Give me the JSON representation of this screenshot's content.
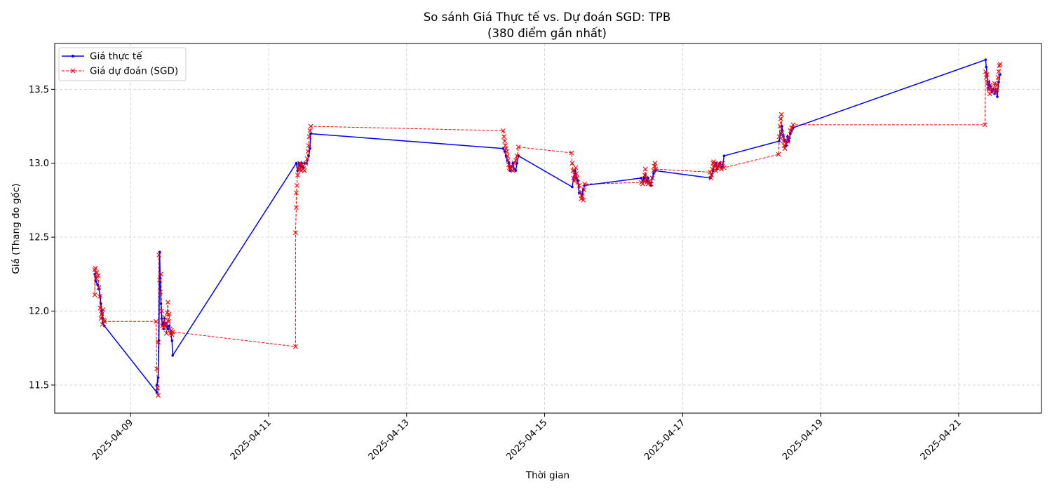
{
  "chart_data": {
    "type": "line",
    "title": "So sánh Giá Thực tế vs. Dự đoán SGD: TPB",
    "subtitle": "(380 điểm gần nhất)",
    "xlabel": "Thời gian",
    "ylabel": "Giá (Thang đo gốc)",
    "xlim": [
      7.9,
      22.2
    ],
    "ylim": [
      11.31,
      13.81
    ],
    "x_ticks": [
      {
        "value": 9,
        "label": "2025-04-09"
      },
      {
        "value": 11,
        "label": "2025-04-11"
      },
      {
        "value": 13,
        "label": "2025-04-13"
      },
      {
        "value": 15,
        "label": "2025-04-15"
      },
      {
        "value": 17,
        "label": "2025-04-17"
      },
      {
        "value": 19,
        "label": "2025-04-19"
      },
      {
        "value": 21,
        "label": "2025-04-21"
      }
    ],
    "y_ticks": [
      11.5,
      12.0,
      12.5,
      13.0,
      13.5
    ],
    "grid": true,
    "legend_position": "top-left",
    "colors": {
      "actual": "#0000ff",
      "predicted": "#ff0000",
      "grid": "#cccccc"
    },
    "series": [
      {
        "name": "Giá thực tế",
        "style": "solid line with dot markers",
        "color": "#0000ff",
        "points": [
          [
            8.48,
            12.25
          ],
          [
            8.5,
            12.2
          ],
          [
            8.52,
            12.18
          ],
          [
            8.54,
            12.15
          ],
          [
            8.56,
            12.1
          ],
          [
            8.57,
            12.05
          ],
          [
            8.58,
            12.0
          ],
          [
            8.59,
            11.95
          ],
          [
            8.6,
            11.92
          ],
          [
            8.62,
            11.9
          ],
          [
            9.38,
            11.45
          ],
          [
            9.38,
            11.5
          ],
          [
            9.4,
            11.55
          ],
          [
            9.41,
            11.8
          ],
          [
            9.42,
            12.4
          ],
          [
            9.43,
            12.2
          ],
          [
            9.44,
            12.05
          ],
          [
            9.45,
            11.95
          ],
          [
            9.46,
            11.9
          ],
          [
            9.47,
            11.92
          ],
          [
            9.48,
            11.88
          ],
          [
            9.49,
            11.95
          ],
          [
            9.5,
            11.9
          ],
          [
            9.52,
            11.92
          ],
          [
            9.54,
            11.88
          ],
          [
            9.56,
            11.9
          ],
          [
            9.58,
            11.85
          ],
          [
            9.6,
            11.8
          ],
          [
            9.61,
            11.7
          ],
          [
            11.4,
            13.0
          ],
          [
            11.42,
            12.95
          ],
          [
            11.44,
            13.0
          ],
          [
            11.46,
            12.98
          ],
          [
            11.48,
            13.0
          ],
          [
            11.5,
            12.97
          ],
          [
            11.52,
            13.0
          ],
          [
            11.55,
            13.0
          ],
          [
            11.58,
            13.05
          ],
          [
            11.6,
            13.1
          ],
          [
            11.61,
            13.2
          ],
          [
            14.4,
            13.1
          ],
          [
            14.42,
            13.08
          ],
          [
            14.44,
            13.05
          ],
          [
            14.46,
            13.02
          ],
          [
            14.48,
            13.0
          ],
          [
            14.5,
            12.95
          ],
          [
            14.52,
            12.98
          ],
          [
            14.54,
            13.0
          ],
          [
            14.56,
            12.96
          ],
          [
            14.58,
            12.95
          ],
          [
            14.6,
            13.0
          ],
          [
            14.62,
            13.05
          ],
          [
            15.4,
            12.84
          ],
          [
            15.42,
            12.9
          ],
          [
            15.44,
            12.95
          ],
          [
            15.46,
            12.9
          ],
          [
            15.48,
            12.88
          ],
          [
            15.5,
            12.8
          ],
          [
            15.52,
            12.8
          ],
          [
            15.54,
            12.78
          ],
          [
            15.56,
            12.82
          ],
          [
            15.58,
            12.85
          ],
          [
            16.4,
            12.9
          ],
          [
            16.42,
            12.88
          ],
          [
            16.44,
            12.9
          ],
          [
            16.46,
            12.92
          ],
          [
            16.48,
            12.88
          ],
          [
            16.5,
            12.9
          ],
          [
            16.52,
            12.87
          ],
          [
            16.54,
            12.85
          ],
          [
            16.56,
            12.9
          ],
          [
            16.58,
            12.93
          ],
          [
            16.6,
            12.95
          ],
          [
            17.4,
            12.9
          ],
          [
            17.42,
            12.92
          ],
          [
            17.44,
            12.95
          ],
          [
            17.46,
            12.98
          ],
          [
            17.48,
            13.0
          ],
          [
            17.5,
            12.96
          ],
          [
            17.52,
            12.98
          ],
          [
            17.54,
            13.0
          ],
          [
            17.56,
            12.97
          ],
          [
            17.58,
            12.98
          ],
          [
            17.6,
            13.05
          ],
          [
            18.4,
            13.15
          ],
          [
            18.42,
            13.2
          ],
          [
            18.44,
            13.25
          ],
          [
            18.46,
            13.18
          ],
          [
            18.48,
            13.15
          ],
          [
            18.5,
            13.12
          ],
          [
            18.52,
            13.18
          ],
          [
            18.54,
            13.15
          ],
          [
            18.56,
            13.2
          ],
          [
            18.58,
            13.22
          ],
          [
            18.6,
            13.24
          ],
          [
            21.39,
            13.7
          ],
          [
            21.4,
            13.65
          ],
          [
            21.41,
            13.6
          ],
          [
            21.42,
            13.55
          ],
          [
            21.43,
            13.5
          ],
          [
            21.44,
            13.55
          ],
          [
            21.46,
            13.52
          ],
          [
            21.48,
            13.48
          ],
          [
            21.5,
            13.5
          ],
          [
            21.52,
            13.47
          ],
          [
            21.54,
            13.5
          ],
          [
            21.56,
            13.45
          ],
          [
            21.58,
            13.55
          ],
          [
            21.6,
            13.6
          ]
        ]
      },
      {
        "name": "Giá dự đoán (SGD)",
        "style": "dashed line with x markers",
        "color": "#ff0000",
        "points": [
          [
            8.48,
            12.28
          ],
          [
            8.48,
            12.11
          ],
          [
            8.49,
            12.29
          ],
          [
            8.5,
            12.22
          ],
          [
            8.51,
            12.26
          ],
          [
            8.53,
            12.24
          ],
          [
            8.54,
            12.16
          ],
          [
            8.55,
            12.1
          ],
          [
            8.56,
            12.02
          ],
          [
            8.57,
            11.95
          ],
          [
            8.58,
            11.98
          ],
          [
            8.59,
            11.91
          ],
          [
            8.6,
            12.01
          ],
          [
            8.61,
            11.94
          ],
          [
            8.62,
            11.93
          ],
          [
            9.37,
            11.93
          ],
          [
            9.38,
            11.61
          ],
          [
            9.39,
            11.48
          ],
          [
            9.4,
            11.43
          ],
          [
            9.4,
            11.79
          ],
          [
            9.41,
            12.38
          ],
          [
            9.42,
            12.21
          ],
          [
            9.43,
            12.13
          ],
          [
            9.44,
            12.25
          ],
          [
            9.45,
            12.0
          ],
          [
            9.46,
            11.9
          ],
          [
            9.47,
            11.93
          ],
          [
            9.48,
            11.89
          ],
          [
            9.49,
            11.96
          ],
          [
            9.5,
            11.9
          ],
          [
            9.51,
            11.92
          ],
          [
            9.52,
            11.85
          ],
          [
            9.53,
            11.99
          ],
          [
            9.54,
            12.06
          ],
          [
            9.55,
            11.93
          ],
          [
            9.56,
            11.98
          ],
          [
            9.57,
            11.88
          ],
          [
            9.58,
            11.85
          ],
          [
            9.59,
            11.87
          ],
          [
            9.6,
            11.84
          ],
          [
            9.61,
            11.86
          ],
          [
            11.39,
            11.76
          ],
          [
            11.39,
            12.53
          ],
          [
            11.4,
            12.7
          ],
          [
            11.4,
            12.8
          ],
          [
            11.41,
            12.85
          ],
          [
            11.42,
            12.92
          ],
          [
            11.43,
            12.96
          ],
          [
            11.44,
            12.98
          ],
          [
            11.45,
            13.0
          ],
          [
            11.46,
            12.96
          ],
          [
            11.47,
            12.95
          ],
          [
            11.48,
            12.99
          ],
          [
            11.5,
            12.96
          ],
          [
            11.52,
            12.95
          ],
          [
            11.54,
            13.0
          ],
          [
            11.56,
            13.03
          ],
          [
            11.57,
            13.08
          ],
          [
            11.58,
            13.12
          ],
          [
            11.59,
            13.18
          ],
          [
            11.6,
            13.22
          ],
          [
            11.61,
            13.25
          ],
          [
            14.4,
            13.22
          ],
          [
            14.41,
            13.18
          ],
          [
            14.42,
            13.15
          ],
          [
            14.43,
            13.12
          ],
          [
            14.44,
            13.1
          ],
          [
            14.45,
            13.08
          ],
          [
            14.46,
            13.05
          ],
          [
            14.47,
            13.02
          ],
          [
            14.48,
            12.99
          ],
          [
            14.49,
            12.97
          ],
          [
            14.5,
            12.96
          ],
          [
            14.52,
            12.98
          ],
          [
            14.54,
            12.95
          ],
          [
            14.56,
            13.0
          ],
          [
            14.58,
            13.02
          ],
          [
            14.6,
            13.05
          ],
          [
            14.62,
            13.11
          ],
          [
            15.39,
            13.07
          ],
          [
            15.4,
            13.0
          ],
          [
            15.41,
            12.95
          ],
          [
            15.42,
            12.9
          ],
          [
            15.43,
            12.88
          ],
          [
            15.44,
            12.92
          ],
          [
            15.45,
            12.97
          ],
          [
            15.46,
            12.93
          ],
          [
            15.47,
            12.9
          ],
          [
            15.48,
            12.87
          ],
          [
            15.5,
            12.85
          ],
          [
            15.52,
            12.8
          ],
          [
            15.53,
            12.76
          ],
          [
            15.54,
            12.78
          ],
          [
            15.56,
            12.75
          ],
          [
            15.57,
            12.82
          ],
          [
            15.58,
            12.86
          ],
          [
            16.4,
            12.87
          ],
          [
            16.42,
            12.86
          ],
          [
            16.44,
            12.88
          ],
          [
            16.45,
            12.92
          ],
          [
            16.46,
            12.96
          ],
          [
            16.47,
            12.9
          ],
          [
            16.48,
            12.87
          ],
          [
            16.5,
            12.86
          ],
          [
            16.52,
            12.88
          ],
          [
            16.54,
            12.86
          ],
          [
            16.56,
            12.9
          ],
          [
            16.58,
            12.95
          ],
          [
            16.59,
            12.98
          ],
          [
            16.6,
            13.0
          ],
          [
            16.61,
            12.96
          ],
          [
            17.4,
            12.94
          ],
          [
            17.41,
            12.9
          ],
          [
            17.42,
            12.92
          ],
          [
            17.43,
            12.96
          ],
          [
            17.44,
            13.0
          ],
          [
            17.45,
            13.01
          ],
          [
            17.46,
            12.98
          ],
          [
            17.48,
            12.95
          ],
          [
            17.5,
            12.97
          ],
          [
            17.52,
            13.0
          ],
          [
            17.54,
            12.98
          ],
          [
            17.56,
            12.96
          ],
          [
            17.58,
            13.0
          ],
          [
            17.6,
            12.97
          ],
          [
            18.39,
            13.06
          ],
          [
            18.4,
            13.18
          ],
          [
            18.41,
            13.25
          ],
          [
            18.42,
            13.3
          ],
          [
            18.43,
            13.33
          ],
          [
            18.44,
            13.21
          ],
          [
            18.45,
            13.18
          ],
          [
            18.46,
            13.15
          ],
          [
            18.47,
            13.12
          ],
          [
            18.48,
            13.1
          ],
          [
            18.5,
            13.13
          ],
          [
            18.52,
            13.15
          ],
          [
            18.54,
            13.18
          ],
          [
            18.56,
            13.22
          ],
          [
            18.58,
            13.24
          ],
          [
            18.6,
            13.26
          ],
          [
            21.38,
            13.26
          ],
          [
            21.39,
            13.62
          ],
          [
            21.4,
            13.58
          ],
          [
            21.41,
            13.6
          ],
          [
            21.42,
            13.55
          ],
          [
            21.43,
            13.52
          ],
          [
            21.44,
            13.5
          ],
          [
            21.45,
            13.47
          ],
          [
            21.46,
            13.53
          ],
          [
            21.48,
            13.5
          ],
          [
            21.5,
            13.49
          ],
          [
            21.52,
            13.54
          ],
          [
            21.54,
            13.48
          ],
          [
            21.55,
            13.5
          ],
          [
            21.56,
            13.53
          ],
          [
            21.57,
            13.58
          ],
          [
            21.58,
            13.62
          ],
          [
            21.59,
            13.66
          ],
          [
            21.6,
            13.67
          ]
        ]
      }
    ]
  }
}
